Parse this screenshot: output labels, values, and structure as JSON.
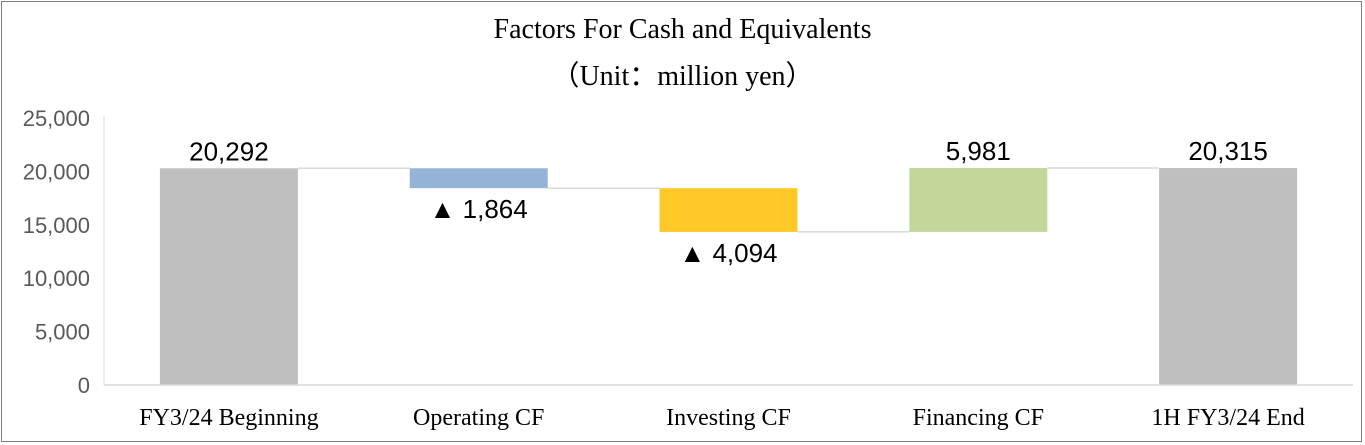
{
  "chart_data": {
    "type": "bar",
    "subtype": "waterfall",
    "title": "Factors For Cash and Equivalents",
    "subtitle": "（Unit：million yen）",
    "categories": [
      "FY3/24 Beginning",
      "Operating CF",
      "Investing CF",
      "Financing CF",
      "1H FY3/24 End"
    ],
    "bars": [
      {
        "label": "FY3/24 Beginning",
        "base": 0,
        "top": 20292,
        "value_label": "20,292",
        "color": "#bfbfbf"
      },
      {
        "label": "Operating CF",
        "base": 18428,
        "top": 20292,
        "value_label": "▲ 1,864",
        "color": "#95b3d7"
      },
      {
        "label": "Investing CF",
        "base": 14334,
        "top": 18428,
        "value_label": "▲ 4,094",
        "color": "#ffca28"
      },
      {
        "label": "Financing CF",
        "base": 14334,
        "top": 20315,
        "value_label": "5,981",
        "color": "#c4d79b"
      },
      {
        "label": "1H FY3/24 End",
        "base": 0,
        "top": 20315,
        "value_label": "20,315",
        "color": "#bfbfbf"
      }
    ],
    "ylim": [
      0,
      25000
    ],
    "yticks": [
      "0",
      "5,000",
      "10,000",
      "15,000",
      "20,000",
      "25,000"
    ],
    "ytick_values": [
      0,
      5000,
      10000,
      15000,
      20000,
      25000
    ],
    "grid": false,
    "legend": "none"
  }
}
